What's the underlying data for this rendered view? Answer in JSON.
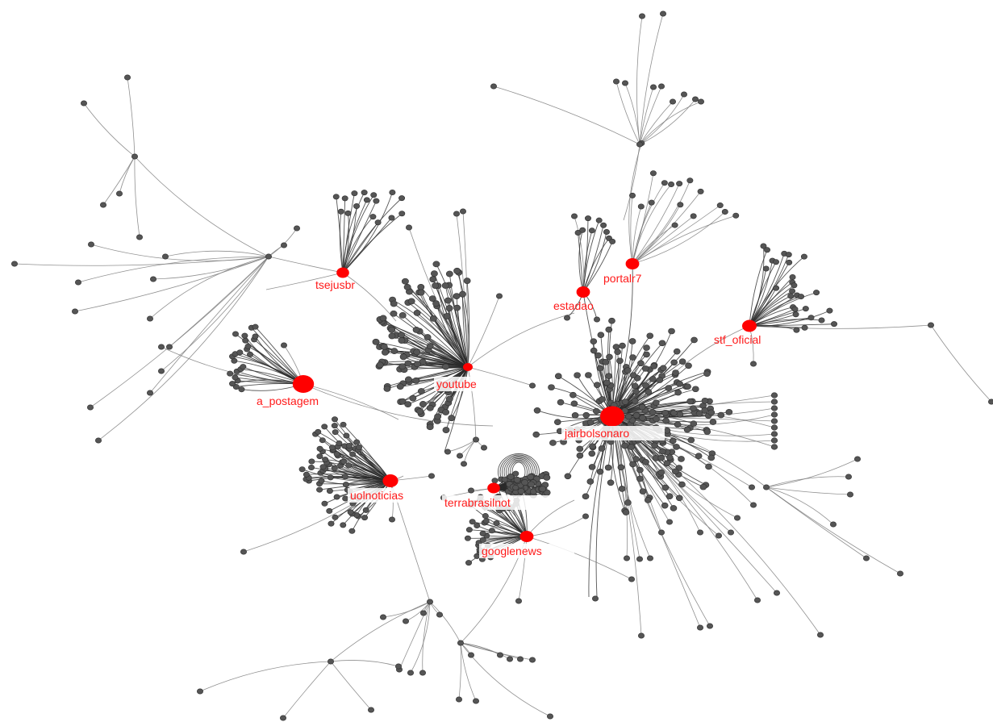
{
  "graph": {
    "node_color": "#ff0000",
    "leaf_color": "#555555",
    "edge_color": "#7d7d7d",
    "label_color": "#ff1a1a",
    "hubs": [
      {
        "id": "tsejusbr",
        "label": "tsejusbr"
      },
      {
        "id": "portalr7",
        "label": "portalr7"
      },
      {
        "id": "estadao",
        "label": "estadao"
      },
      {
        "id": "stf_oficial",
        "label": "stf_oficial"
      },
      {
        "id": "youtube",
        "label": "youtube"
      },
      {
        "id": "a_postagem",
        "label": "a_postagem"
      },
      {
        "id": "jairbolsonaro",
        "label": "jairbolsonaro"
      },
      {
        "id": "uolnoticias",
        "label": "uolnoticias"
      },
      {
        "id": "terrabrasilnot",
        "label": "terrabrasilnot"
      },
      {
        "id": "googlenews",
        "label": "googlenews"
      }
    ]
  }
}
